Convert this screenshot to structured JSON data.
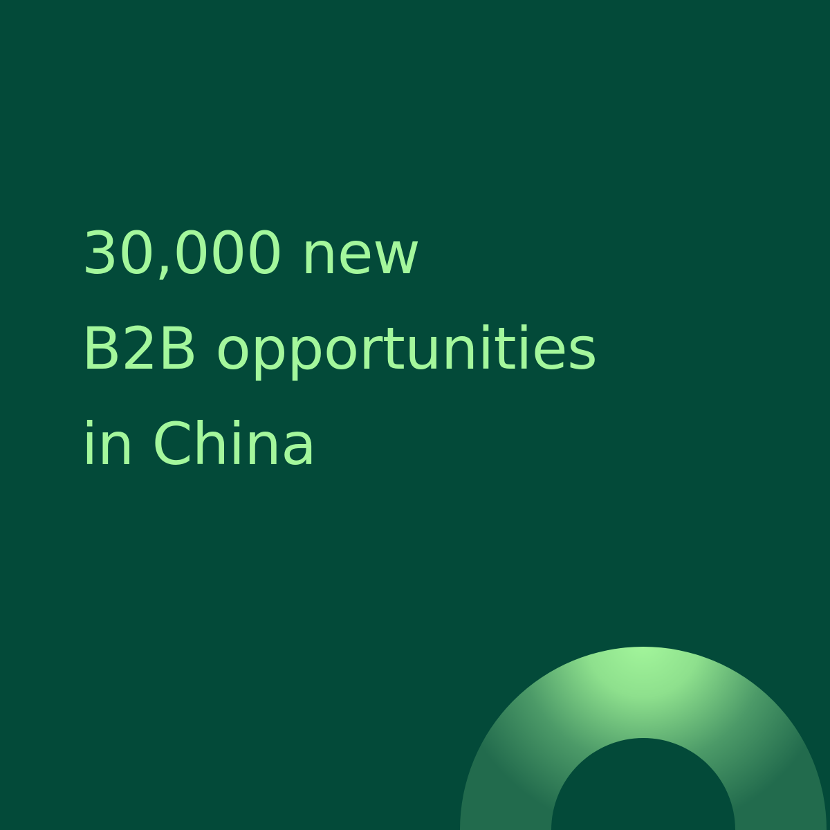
{
  "headline": {
    "line1": "30,000 new",
    "line2": "B2B opportunities",
    "line3": "in China"
  },
  "colors": {
    "background": "#034a39",
    "text": "#a4f79c",
    "ring_highlight": "#a4f79c",
    "ring_base": "#226b4d"
  },
  "decoration": {
    "shape": "ring-arc"
  }
}
